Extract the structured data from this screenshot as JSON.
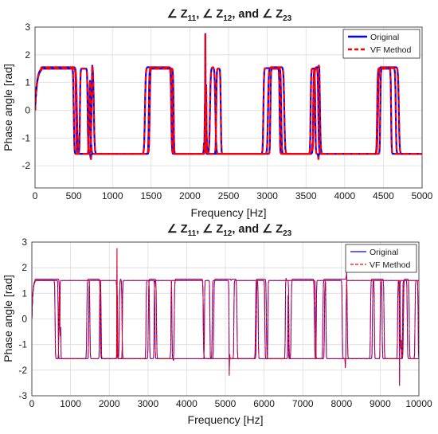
{
  "chart_data": [
    {
      "type": "line",
      "title": {
        "a": "∠ Z",
        "a_sub": "11",
        "b": ", ∠ Z",
        "b_sub": "12",
        "c": ", and ∠ Z",
        "c_sub": "23"
      },
      "xlabel": "Frequency [Hz]",
      "ylabel": "Phase angle [rad]",
      "xlim": [
        0,
        5000
      ],
      "ylim": [
        -2.8,
        3
      ],
      "xticks": [
        0,
        500,
        1000,
        1500,
        2000,
        2500,
        3000,
        3500,
        4000,
        4500,
        5000
      ],
      "yticks": [
        -2,
        -1,
        0,
        1,
        2,
        3
      ],
      "grid": true,
      "legend_position": "top-right",
      "series": [
        {
          "name": "Original",
          "color": "#0000ff",
          "style": "solid",
          "traces": [
            {
              "center": 1.5,
              "low": -1.57,
              "high": 1.52,
              "width": 22,
              "start": 0.0,
              "transitions": [
                500,
                700,
                720,
                1480,
                1760,
                2190,
                2200,
                2950,
                3180,
                3590,
                3660,
                4420,
                4660
              ],
              "spikes": [
                [
                  720,
                  -1.8
                ],
                [
                  2190,
                  -1.55
                ],
                [
                  3590,
                  -1.65
                ]
              ]
            },
            {
              "center": 1.5,
              "low": -1.57,
              "high": 1.5,
              "width": 18,
              "start": 0.0,
              "transitions": [
                530,
                580,
                680,
                1470,
                1790,
                2340,
                2400,
                3040,
                3160,
                3560,
                3620,
                4460,
                4600
              ],
              "spikes": [
                [
                  720,
                  -2.0
                ],
                [
                  2200,
                  2.75
                ],
                [
                  3660,
                  -1.85
                ]
              ]
            },
            {
              "center": 1.5,
              "low": -1.57,
              "high": 1.55,
              "width": 30,
              "start": 0.0,
              "transitions": [
                540,
                730,
                760,
                1420,
                1770,
                2260,
                2330,
                3010,
                3220,
                3600,
                3680,
                4430,
                4700
              ],
              "spikes": [
                [
                  740,
                  1.75
                ],
                [
                  2210,
                  1.6
                ],
                [
                  3670,
                  1.9
                ]
              ]
            }
          ]
        },
        {
          "name": "VF Method",
          "color": "#ff0000",
          "style": "dashed",
          "traces": [
            {
              "center": 1.5,
              "low": -1.57,
              "high": 1.52,
              "width": 22,
              "start": 0.0,
              "transitions": [
                500,
                700,
                720,
                1480,
                1760,
                2190,
                2200,
                2950,
                3180,
                3590,
                3660,
                4420,
                4660
              ],
              "spikes": [
                [
                  720,
                  -1.8
                ],
                [
                  2190,
                  -1.55
                ],
                [
                  3590,
                  -1.65
                ]
              ]
            },
            {
              "center": 1.5,
              "low": -1.57,
              "high": 1.5,
              "width": 18,
              "start": 0.0,
              "transitions": [
                530,
                580,
                680,
                1470,
                1790,
                2340,
                2400,
                3040,
                3160,
                3560,
                3620,
                4460,
                4600
              ],
              "spikes": [
                [
                  720,
                  -2.0
                ],
                [
                  2200,
                  2.75
                ],
                [
                  3660,
                  -1.85
                ]
              ]
            },
            {
              "center": 1.5,
              "low": -1.57,
              "high": 1.55,
              "width": 30,
              "start": 0.0,
              "transitions": [
                540,
                730,
                760,
                1420,
                1770,
                2260,
                2330,
                3010,
                3220,
                3600,
                3680,
                4430,
                4700
              ],
              "spikes": [
                [
                  740,
                  1.75
                ],
                [
                  2210,
                  1.6
                ],
                [
                  3670,
                  1.9
                ]
              ]
            }
          ]
        }
      ]
    },
    {
      "type": "line",
      "title": {
        "a": "∠ Z",
        "a_sub": "11",
        "b": ", ∠ Z",
        "b_sub": "12",
        "c": ", and ∠ Z",
        "c_sub": "23"
      },
      "xlabel": "Frequency [Hz]",
      "ylabel": "Phase angle [rad]",
      "xlim": [
        0,
        10000
      ],
      "ylim": [
        -3,
        3
      ],
      "xticks": [
        0,
        1000,
        2000,
        3000,
        4000,
        5000,
        6000,
        7000,
        8000,
        9000,
        10000
      ],
      "yticks": [
        -3,
        -2,
        -1,
        0,
        1,
        2,
        3
      ],
      "grid": true,
      "legend_position": "top-right",
      "series": [
        {
          "name": "Original",
          "color": "#0000ff",
          "style": "solid",
          "traces": [
            {
              "center": 1.5,
              "low": -1.55,
              "high": 1.5,
              "width": 25,
              "start": 0.0,
              "transitions": [
                600,
                700,
                1500,
                1750,
                2200,
                2950,
                3180,
                3590,
                4430,
                4660,
                5100,
                5800,
                6020,
                6550,
                7330,
                7560,
                8020,
                8800,
                9050,
                9450,
                9700,
                9900
              ],
              "spikes": [
                [
                  720,
                  -1.8
                ],
                [
                  3590,
                  -1.6
                ],
                [
                  5100,
                  -2.2
                ],
                [
                  6560,
                  2.3
                ],
                [
                  9500,
                  -2.6
                ]
              ]
            },
            {
              "center": 1.5,
              "low": -1.55,
              "high": 1.5,
              "width": 20,
              "start": 0.0,
              "transitions": [
                680,
                1470,
                1790,
                2340,
                3040,
                3160,
                3620,
                4460,
                4600,
                5220,
                5850,
                6100,
                6640,
                7350,
                7600,
                8120,
                8850,
                9000,
                9520,
                9580,
                9980
              ],
              "spikes": [
                [
                  2200,
                  2.75
                ],
                [
                  3660,
                  -1.85
                ],
                [
                  8100,
                  -1.9
                ],
                [
                  9540,
                  1.6
                ]
              ]
            },
            {
              "center": 1.5,
              "low": -1.55,
              "high": 1.55,
              "width": 30,
              "start": 0.0,
              "transitions": [
                720,
                1420,
                1770,
                2260,
                2330,
                3010,
                3220,
                3680,
                4430,
                4700,
                5300,
                5780,
                6060,
                6700,
                7300,
                7520,
                8150,
                8750,
                9100,
                9600,
                9750
              ],
              "spikes": [
                [
                  740,
                  1.7
                ],
                [
                  2210,
                  1.6
                ],
                [
                  5150,
                  1.4
                ],
                [
                  6620,
                  2.5
                ],
                [
                  8130,
                  2.2
                ]
              ]
            }
          ]
        },
        {
          "name": "VF Method",
          "color": "#ff0000",
          "style": "dashed",
          "traces": [
            {
              "center": 1.5,
              "low": -1.55,
              "high": 1.5,
              "width": 25,
              "start": 0.0,
              "transitions": [
                600,
                700,
                1500,
                1750,
                2200,
                2950,
                3180,
                3590,
                4430,
                4660,
                5100,
                5800,
                6020,
                6550,
                7330,
                7560,
                8020,
                8800,
                9050,
                9450,
                9700,
                9900
              ],
              "spikes": [
                [
                  720,
                  -1.8
                ],
                [
                  3590,
                  -1.6
                ],
                [
                  5100,
                  -2.2
                ],
                [
                  6560,
                  2.3
                ],
                [
                  9500,
                  -2.6
                ]
              ]
            },
            {
              "center": 1.5,
              "low": -1.55,
              "high": 1.5,
              "width": 20,
              "start": 0.0,
              "transitions": [
                680,
                1470,
                1790,
                2340,
                3040,
                3160,
                3620,
                4460,
                4600,
                5220,
                5850,
                6100,
                6640,
                7350,
                7600,
                8120,
                8850,
                9000,
                9520,
                9580,
                9980
              ],
              "spikes": [
                [
                  2200,
                  2.75
                ],
                [
                  3660,
                  -1.85
                ],
                [
                  8100,
                  -1.9
                ],
                [
                  9540,
                  1.6
                ]
              ]
            },
            {
              "center": 1.5,
              "low": -1.55,
              "high": 1.55,
              "width": 30,
              "start": 0.0,
              "transitions": [
                720,
                1420,
                1770,
                2260,
                2330,
                3010,
                3220,
                3680,
                4430,
                4700,
                5300,
                5780,
                6060,
                6700,
                7300,
                7520,
                8150,
                8750,
                9100,
                9600,
                9750
              ],
              "spikes": [
                [
                  740,
                  1.7
                ],
                [
                  2210,
                  1.6
                ],
                [
                  5150,
                  1.4
                ],
                [
                  6620,
                  2.5
                ],
                [
                  8130,
                  2.2
                ]
              ]
            }
          ]
        }
      ]
    }
  ]
}
